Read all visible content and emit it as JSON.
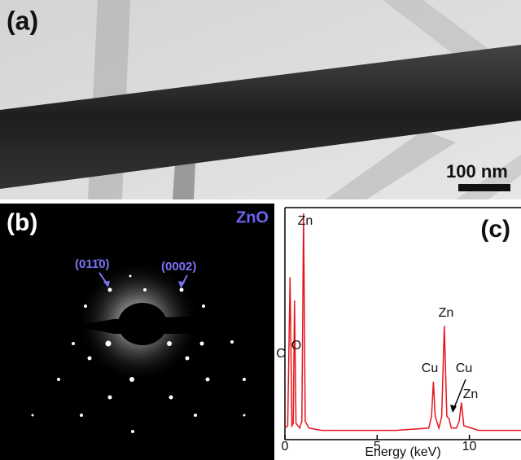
{
  "panel_a": {
    "label": "(a)",
    "scale_bar": "100 nm"
  },
  "panel_b": {
    "label": "(b)",
    "material": "ZnO",
    "spot_labels": [
      "(011̄0)",
      "(0002)"
    ]
  },
  "chart_data": {
    "type": "line",
    "label": "(c)",
    "x_label": "Energy (keV)",
    "x": [
      0,
      0.15,
      0.28,
      0.38,
      0.45,
      0.52,
      0.6,
      0.8,
      0.92,
      1.01,
      1.1,
      1.3,
      2,
      4,
      6,
      7.8,
      7.95,
      8.05,
      8.15,
      8.35,
      8.5,
      8.64,
      8.78,
      8.9,
      9.02,
      9.3,
      9.45,
      9.57,
      9.7,
      10.5,
      12.8
    ],
    "series": [
      {
        "color": "#e8141c",
        "values": [
          0.05,
          0.06,
          0.7,
          0.06,
          0.07,
          0.6,
          0.07,
          0.05,
          0.08,
          0.975,
          0.08,
          0.05,
          0.04,
          0.04,
          0.04,
          0.05,
          0.1,
          0.25,
          0.1,
          0.05,
          0.1,
          0.49,
          0.1,
          0.09,
          0.05,
          0.05,
          0.08,
          0.16,
          0.06,
          0.04,
          0.04
        ]
      }
    ],
    "xlim": [
      0,
      12.8
    ],
    "ylim": [
      0,
      1
    ],
    "xticks": [
      0,
      5,
      10
    ],
    "peak_labels": [
      "C",
      "O",
      "Zn",
      "Zn",
      "Cu",
      "Cu",
      "Zn"
    ]
  }
}
